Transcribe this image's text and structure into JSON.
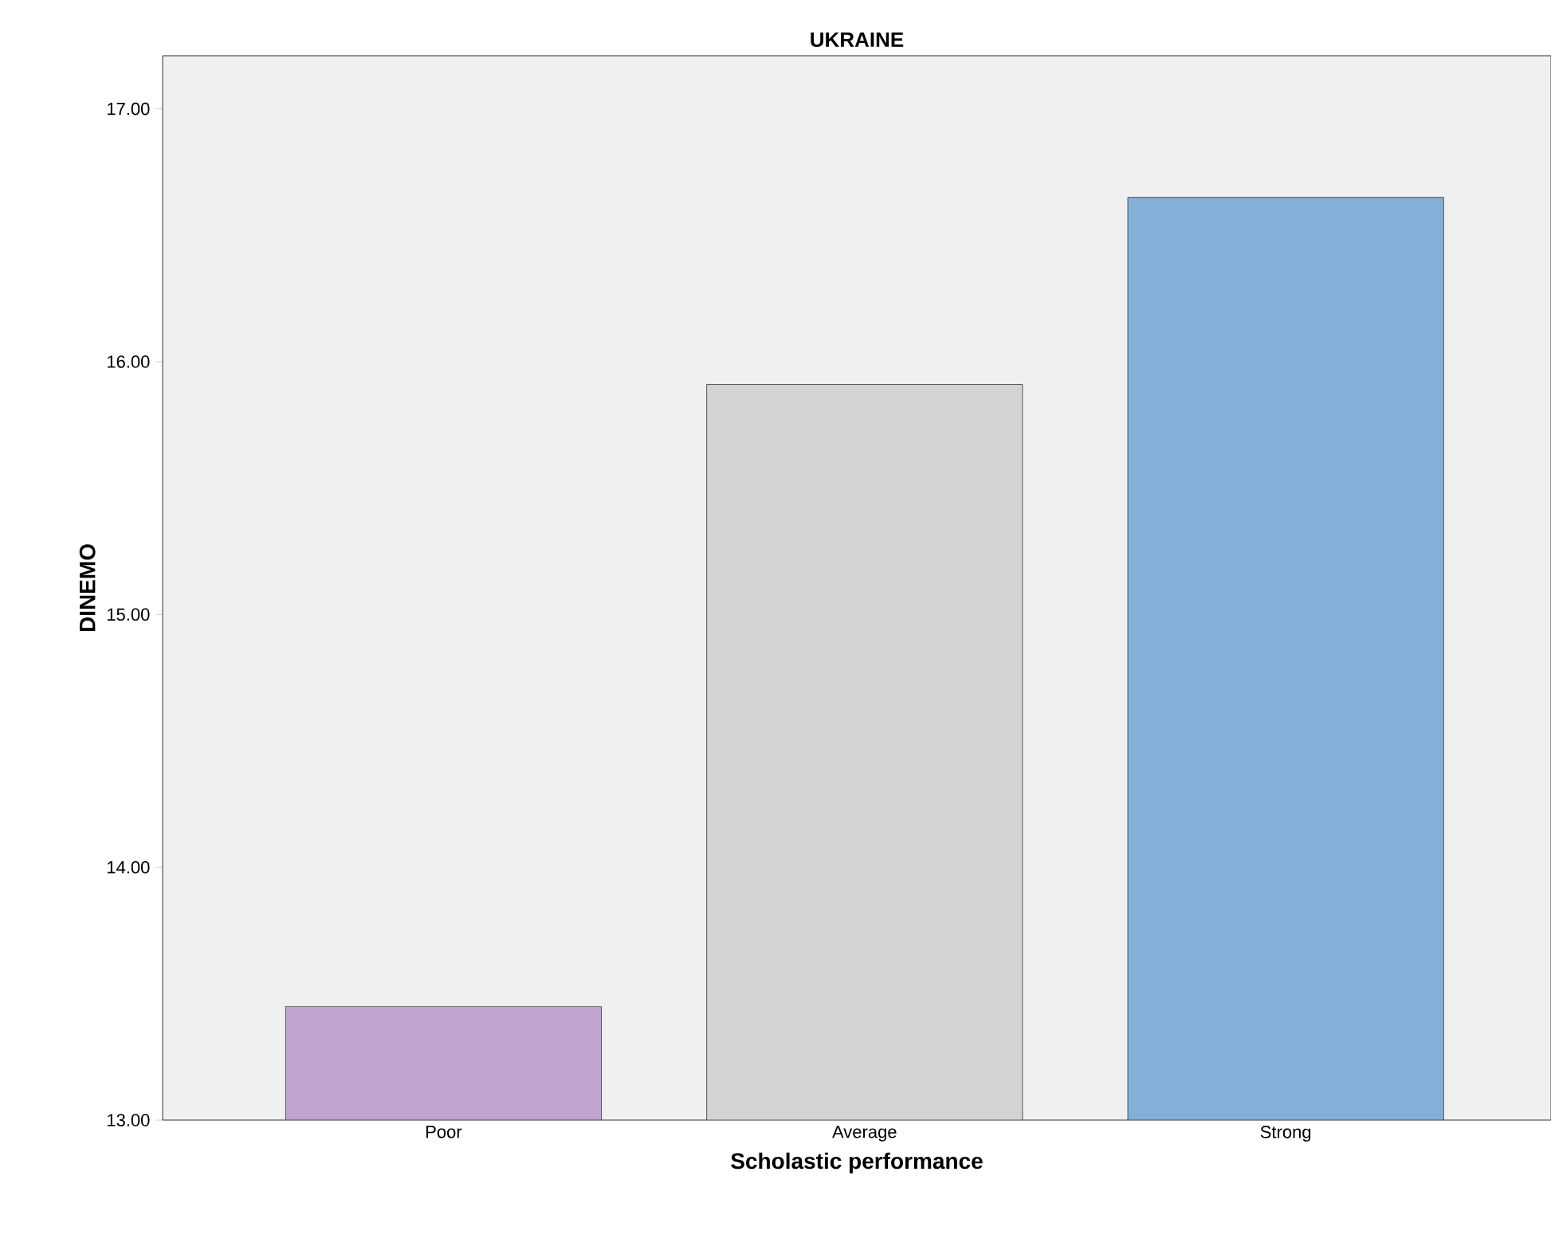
{
  "chart_data": {
    "type": "bar",
    "title": "UKRAINE",
    "xlabel": "Scholastic performance",
    "ylabel": "DINEMO",
    "categories": [
      "Poor",
      "Average",
      "Strong"
    ],
    "values": [
      13.45,
      15.91,
      16.65
    ],
    "colors": [
      "#c0a3ce",
      "#d3d3d3",
      "#84b0d8"
    ],
    "ylim": [
      13,
      17.21
    ],
    "yticks": [
      {
        "value": 13,
        "label": "13.00"
      },
      {
        "value": 14,
        "label": "14.00"
      },
      {
        "value": 15,
        "label": "15.00"
      },
      {
        "value": 16,
        "label": "16.00"
      },
      {
        "value": 17,
        "label": "17.00"
      }
    ],
    "grid": false
  }
}
